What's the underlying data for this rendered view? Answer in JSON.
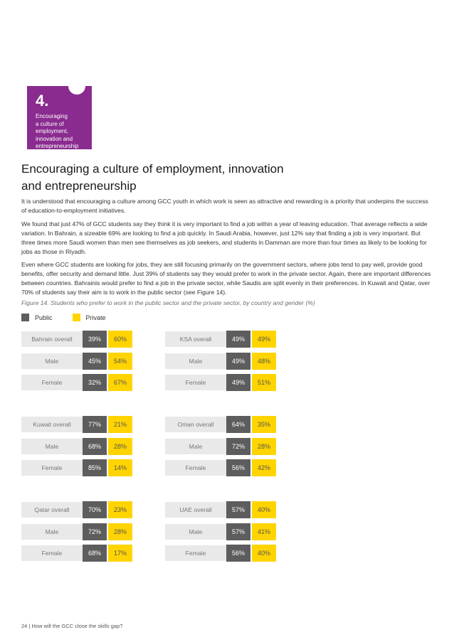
{
  "badge": {
    "number": "4.",
    "lines": [
      "Encouraging",
      "a culture of",
      "employment,",
      "innovation and",
      "entrepreneurship"
    ]
  },
  "heading": {
    "line1": "Encouraging a culture of employment, innovation",
    "line2": "and entrepreneurship"
  },
  "paragraphs": [
    "It is understood that encouraging a culture among GCC youth in which work is seen as attractive and rewarding is a priority that underpins the success of education-to-employment initiatives.",
    "We found that just 47% of GCC students say they think it is very important to find a job within a year of leaving education. That average reflects a wide variation. In Bahrain, a sizeable 69% are looking to find a job quickly. In Saudi Arabia, however, just 12% say that finding a job is very important. But three times more Saudi women than men see themselves as job seekers, and students in Damman are more than four times as likely to be looking for jobs as those in Riyadh.",
    "Even where GCC students are looking for jobs, they are still focusing primarily on the government sectors, where jobs tend to pay well, provide good benefits, offer security and demand little. Just 39% of students say they would prefer to work in the private sector. Again, there are important differences between countries. Bahrainis would prefer to find a job in the private sector, while Saudis are split evenly in their preferences. In Kuwait and Qatar, over 70% of students say their aim is to work in the public sector (see Figure 14)."
  ],
  "caption": "Figure 14. Students who prefer to work in the public sector and the private sector, by country and gender (%)",
  "legend": {
    "public": "Public",
    "private": "Private",
    "public_color": "#5d5d5d",
    "private_color": "#ffd400"
  },
  "chart_data": {
    "type": "table",
    "title": "Figure 14. Students who prefer to work in the public sector and the private sector, by country and gender (%)",
    "columns": [
      "Public",
      "Private"
    ],
    "groups": [
      {
        "rows": [
          {
            "label": "Bahrain overall",
            "public": "39%",
            "private": "60%"
          },
          {
            "label": "Male",
            "public": "45%",
            "private": "54%"
          },
          {
            "label": "Female",
            "public": "32%",
            "private": "67%"
          }
        ]
      },
      {
        "rows": [
          {
            "label": "KSA overall",
            "public": "49%",
            "private": "49%"
          },
          {
            "label": "Male",
            "public": "49%",
            "private": "48%"
          },
          {
            "label": "Female",
            "public": "49%",
            "private": "51%"
          }
        ]
      },
      {
        "rows": [
          {
            "label": "Kuwait overall",
            "public": "77%",
            "private": "21%"
          },
          {
            "label": "Male",
            "public": "68%",
            "private": "28%"
          },
          {
            "label": "Female",
            "public": "85%",
            "private": "14%"
          }
        ]
      },
      {
        "rows": [
          {
            "label": "Oman overall",
            "public": "64%",
            "private": "35%"
          },
          {
            "label": "Male",
            "public": "72%",
            "private": "28%"
          },
          {
            "label": "Female",
            "public": "56%",
            "private": "42%"
          }
        ]
      },
      {
        "rows": [
          {
            "label": "Qatar overall",
            "public": "70%",
            "private": "23%"
          },
          {
            "label": "Male",
            "public": "72%",
            "private": "28%"
          },
          {
            "label": "Female",
            "public": "68%",
            "private": "17%"
          }
        ]
      },
      {
        "rows": [
          {
            "label": "UAE overall",
            "public": "57%",
            "private": "40%"
          },
          {
            "label": "Male",
            "public": "57%",
            "private": "41%"
          },
          {
            "label": "Female",
            "public": "56%",
            "private": "40%"
          }
        ]
      }
    ]
  },
  "footer": "24   |   How will the GCC close the skills gap?"
}
